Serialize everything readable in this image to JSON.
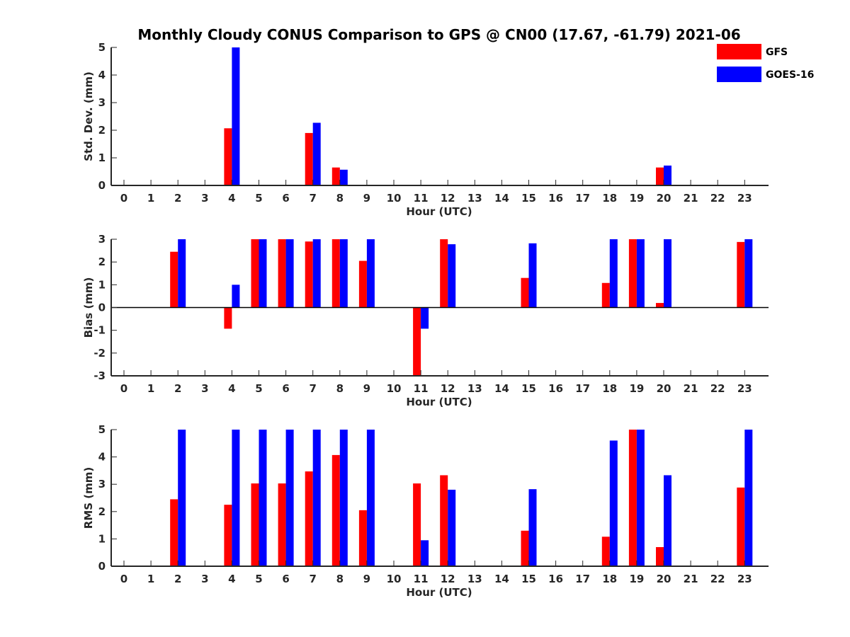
{
  "title": "Monthly Cloudy CONUS Comparison to GPS @ CN00 (17.67, -61.79) 2021-06",
  "legend": [
    {
      "name": "GFS",
      "color": "#ff0000"
    },
    {
      "name": "GOES-16",
      "color": "#0000ff"
    }
  ],
  "chart_data": [
    {
      "type": "bar",
      "xlabel": "Hour (UTC)",
      "ylabel": "Std. Dev. (mm)",
      "ylim": [
        0,
        5
      ],
      "yticks": [
        0,
        1,
        2,
        3,
        4,
        5
      ],
      "categories": [
        "0",
        "1",
        "2",
        "3",
        "4",
        "5",
        "6",
        "7",
        "8",
        "9",
        "10",
        "11",
        "12",
        "13",
        "14",
        "15",
        "16",
        "17",
        "18",
        "19",
        "20",
        "21",
        "22",
        "23"
      ],
      "series": [
        {
          "name": "GFS",
          "color": "#ff0000",
          "values": [
            null,
            null,
            null,
            null,
            2.07,
            null,
            null,
            1.9,
            0.65,
            null,
            null,
            null,
            null,
            null,
            null,
            null,
            null,
            null,
            null,
            null,
            0.65,
            null,
            null,
            null
          ]
        },
        {
          "name": "GOES-16",
          "color": "#0000ff",
          "values": [
            null,
            null,
            null,
            null,
            5.0,
            null,
            null,
            2.27,
            0.57,
            null,
            null,
            null,
            null,
            null,
            null,
            null,
            null,
            null,
            null,
            null,
            0.72,
            null,
            null,
            null
          ]
        }
      ]
    },
    {
      "type": "bar",
      "xlabel": "Hour (UTC)",
      "ylabel": "Bias (mm)",
      "ylim": [
        -3,
        3
      ],
      "yticks": [
        -3,
        -2,
        -1,
        0,
        1,
        2,
        3
      ],
      "categories": [
        "0",
        "1",
        "2",
        "3",
        "4",
        "5",
        "6",
        "7",
        "8",
        "9",
        "10",
        "11",
        "12",
        "13",
        "14",
        "15",
        "16",
        "17",
        "18",
        "19",
        "20",
        "21",
        "22",
        "23"
      ],
      "series": [
        {
          "name": "GFS",
          "color": "#ff0000",
          "values": [
            null,
            null,
            2.45,
            null,
            -0.93,
            3.0,
            3.0,
            2.9,
            3.0,
            2.05,
            null,
            -3.0,
            3.0,
            null,
            null,
            1.3,
            null,
            null,
            1.08,
            3.0,
            0.2,
            null,
            null,
            2.88
          ]
        },
        {
          "name": "GOES-16",
          "color": "#0000ff",
          "values": [
            null,
            null,
            3.0,
            null,
            1.0,
            3.0,
            3.0,
            3.0,
            3.0,
            3.0,
            null,
            -0.93,
            2.78,
            null,
            null,
            2.82,
            null,
            null,
            3.0,
            3.0,
            3.0,
            null,
            null,
            3.0
          ]
        }
      ]
    },
    {
      "type": "bar",
      "xlabel": "Hour (UTC)",
      "ylabel": "RMS (mm)",
      "ylim": [
        0,
        5
      ],
      "yticks": [
        0,
        1,
        2,
        3,
        4,
        5
      ],
      "categories": [
        "0",
        "1",
        "2",
        "3",
        "4",
        "5",
        "6",
        "7",
        "8",
        "9",
        "10",
        "11",
        "12",
        "13",
        "14",
        "15",
        "16",
        "17",
        "18",
        "19",
        "20",
        "21",
        "22",
        "23"
      ],
      "series": [
        {
          "name": "GFS",
          "color": "#ff0000",
          "values": [
            null,
            null,
            2.45,
            null,
            2.25,
            3.03,
            3.03,
            3.47,
            4.07,
            2.05,
            null,
            3.03,
            3.33,
            null,
            null,
            1.3,
            null,
            null,
            1.08,
            5.0,
            0.7,
            null,
            null,
            2.88
          ]
        },
        {
          "name": "GOES-16",
          "color": "#0000ff",
          "values": [
            null,
            null,
            5.0,
            null,
            5.0,
            5.0,
            5.0,
            5.0,
            5.0,
            5.0,
            null,
            0.95,
            2.8,
            null,
            null,
            2.82,
            null,
            null,
            4.6,
            5.0,
            3.33,
            null,
            null,
            5.0
          ]
        }
      ]
    }
  ]
}
